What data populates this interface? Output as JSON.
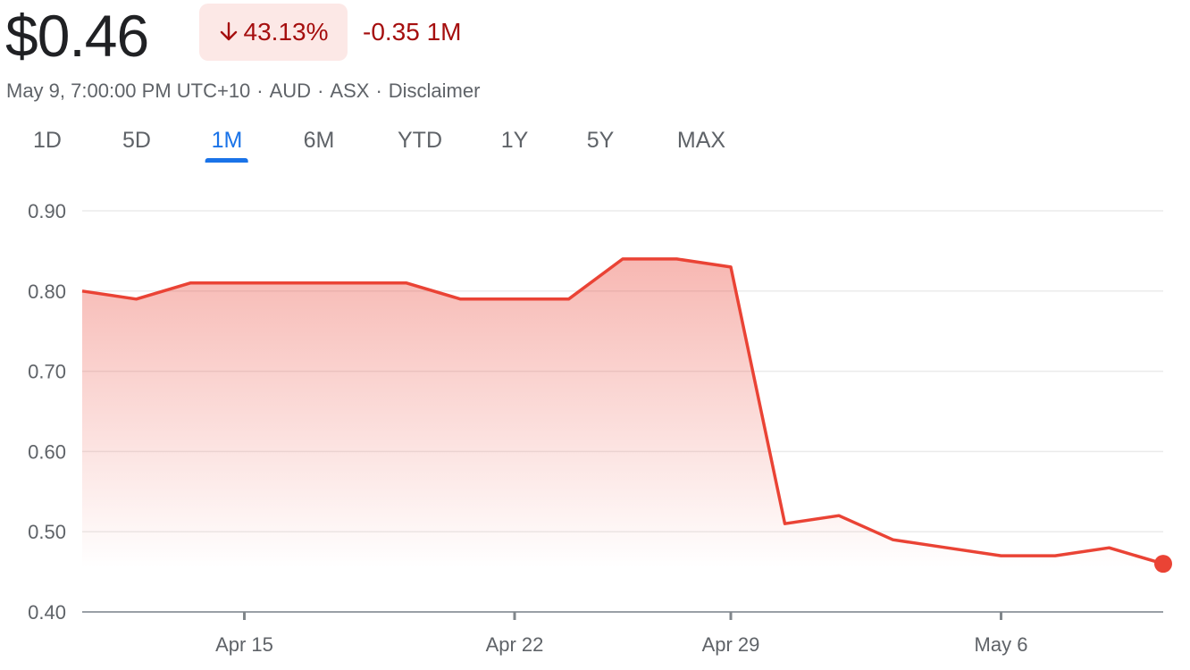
{
  "quote": {
    "price": "$0.46",
    "change_pct": "43.13%",
    "change_abs": "-0.35 1M",
    "direction_icon": "arrow-down-icon"
  },
  "meta": {
    "timestamp": "May 9, 7:00:00 PM UTC+10",
    "currency": "AUD",
    "exchange": "ASX",
    "disclaimer": "Disclaimer",
    "separator": "·"
  },
  "tabs": [
    {
      "label": "1D",
      "active": false
    },
    {
      "label": "5D",
      "active": false
    },
    {
      "label": "1M",
      "active": true
    },
    {
      "label": "6M",
      "active": false
    },
    {
      "label": "YTD",
      "active": false
    },
    {
      "label": "1Y",
      "active": false
    },
    {
      "label": "5Y",
      "active": false
    },
    {
      "label": "MAX",
      "active": false
    }
  ],
  "colors": {
    "negative": "#a50e0e",
    "negative_bg": "#fce8e6",
    "line": "#ea4335",
    "accent": "#1a73e8",
    "axis_text": "#5f6368",
    "gridline": "#ebebeb"
  },
  "chart_data": {
    "type": "area",
    "title": "",
    "xlabel": "",
    "ylabel": "",
    "ylim": [
      0.4,
      0.9
    ],
    "yticks": [
      "0.90",
      "0.80",
      "0.70",
      "0.60",
      "0.50",
      "0.40"
    ],
    "ytick_values": [
      0.9,
      0.8,
      0.7,
      0.6,
      0.5,
      0.4
    ],
    "xticks": [
      "Apr 15",
      "Apr 22",
      "Apr 29",
      "May 6"
    ],
    "xtick_dates": [
      "2024-04-15",
      "2024-04-22",
      "2024-04-29",
      "2024-05-06"
    ],
    "grid": true,
    "series": [
      {
        "x": [
          "2024-04-10",
          "2024-04-11",
          "2024-04-12",
          "2024-04-15",
          "2024-04-16",
          "2024-04-17",
          "2024-04-18",
          "2024-04-19",
          "2024-04-22",
          "2024-04-23",
          "2024-04-24",
          "2024-04-26",
          "2024-04-29",
          "2024-04-30",
          "2024-05-01",
          "2024-05-02",
          "2024-05-03",
          "2024-05-06",
          "2024-05-07",
          "2024-05-08",
          "2024-05-09"
        ],
        "values": [
          0.8,
          0.79,
          0.81,
          0.81,
          0.81,
          0.81,
          0.81,
          0.79,
          0.79,
          0.79,
          0.84,
          0.84,
          0.83,
          0.51,
          0.52,
          0.49,
          0.48,
          0.47,
          0.47,
          0.48,
          0.46
        ]
      }
    ]
  }
}
